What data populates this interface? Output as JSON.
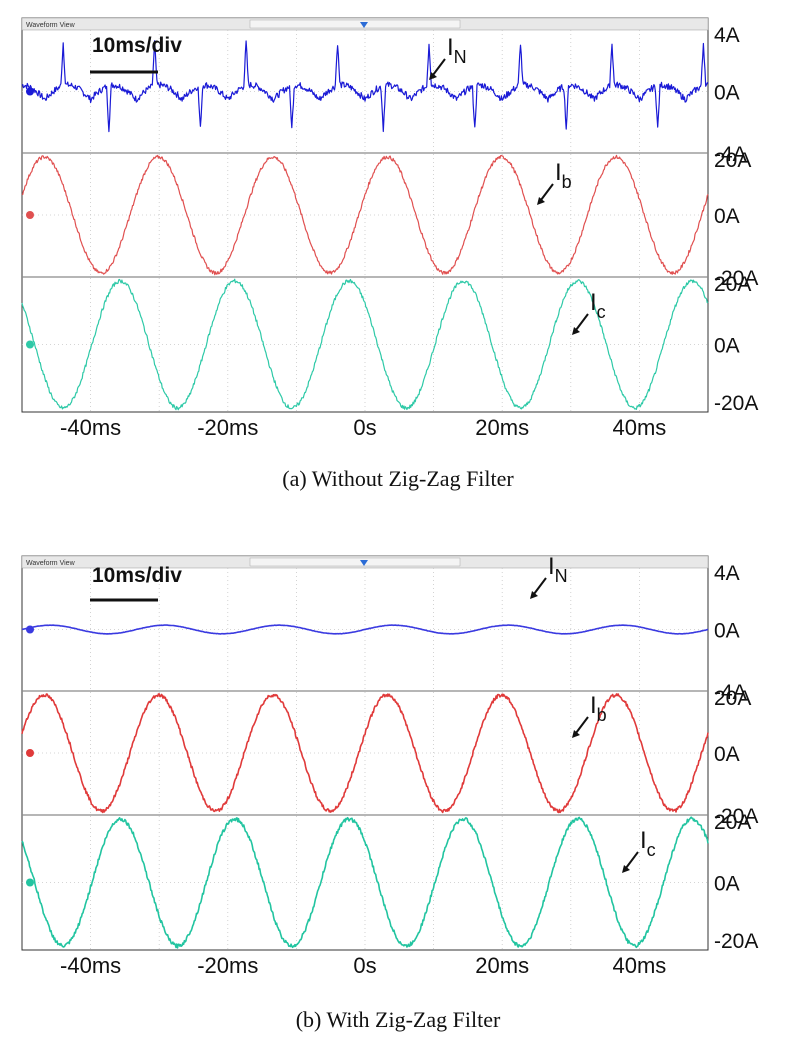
{
  "panels": [
    {
      "caption": "(a)  Without  Zig-Zag  Filter",
      "window_label": "Waveform View",
      "timebase": "10ms/div",
      "x_tick_labels": [
        "-40ms",
        "-20ms",
        "0s",
        "20ms",
        "40ms"
      ],
      "channels": [
        {
          "name": "I",
          "sub": "N",
          "color": "#1a1ad6",
          "y_labels": [
            "4A",
            "0A",
            "-4A"
          ]
        },
        {
          "name": "I",
          "sub": "b",
          "color": "#e05050",
          "y_labels": [
            "20A",
            "0A",
            "-20A"
          ]
        },
        {
          "name": "I",
          "sub": "c",
          "color": "#2ec9a7",
          "y_labels": [
            "20A",
            "0A",
            "-20A"
          ]
        }
      ]
    },
    {
      "caption": "(b)  With  Zig-Zag  Filter",
      "window_label": "Waveform View",
      "timebase": "10ms/div",
      "x_tick_labels": [
        "-40ms",
        "-20ms",
        "0s",
        "20ms",
        "40ms"
      ],
      "channels": [
        {
          "name": "I",
          "sub": "N",
          "color": "#3a3ae0",
          "y_labels": [
            "4A",
            "0A",
            "-4A"
          ]
        },
        {
          "name": "I",
          "sub": "b",
          "color": "#e03a3a",
          "y_labels": [
            "20A",
            "0A",
            "-20A"
          ]
        },
        {
          "name": "I",
          "sub": "c",
          "color": "#22c4a0",
          "y_labels": [
            "20A",
            "0A",
            "-20A"
          ]
        }
      ]
    }
  ],
  "chart_data": [
    {
      "type": "line",
      "title": "(a)  Without  Zig-Zag  Filter",
      "x_unit": "ms",
      "xlim": [
        -50,
        50
      ],
      "x_ticks": [
        -40,
        -20,
        0,
        20,
        40
      ],
      "series": [
        {
          "name": "IN",
          "kind": "neutral current with spikes",
          "frequency_hz": 150,
          "amplitude_A": 1.0,
          "spike_amplitude_A": 3.0,
          "phase_deg": 0,
          "ylim": [
            -4,
            4
          ]
        },
        {
          "name": "Ib",
          "kind": "sine",
          "frequency_hz": 60,
          "amplitude_A": 20,
          "phase_deg": 20,
          "ylim": [
            -20,
            20
          ]
        },
        {
          "name": "Ic",
          "kind": "sine",
          "frequency_hz": 60,
          "amplitude_A": 20,
          "phase_deg": 140,
          "ylim": [
            -20,
            20
          ]
        }
      ]
    },
    {
      "type": "line",
      "title": "(b)  With  Zig-Zag  Filter",
      "x_unit": "ms",
      "xlim": [
        -50,
        50
      ],
      "x_ticks": [
        -40,
        -20,
        0,
        20,
        40
      ],
      "series": [
        {
          "name": "IN",
          "kind": "sine",
          "frequency_hz": 60,
          "amplitude_A": 0.3,
          "phase_deg": 0,
          "ylim": [
            -4,
            4
          ]
        },
        {
          "name": "Ib",
          "kind": "sine",
          "frequency_hz": 60,
          "amplitude_A": 20,
          "phase_deg": 20,
          "ylim": [
            -20,
            20
          ]
        },
        {
          "name": "Ic",
          "kind": "sine",
          "frequency_hz": 60,
          "amplitude_A": 20,
          "phase_deg": 140,
          "ylim": [
            -20,
            20
          ]
        }
      ]
    }
  ]
}
